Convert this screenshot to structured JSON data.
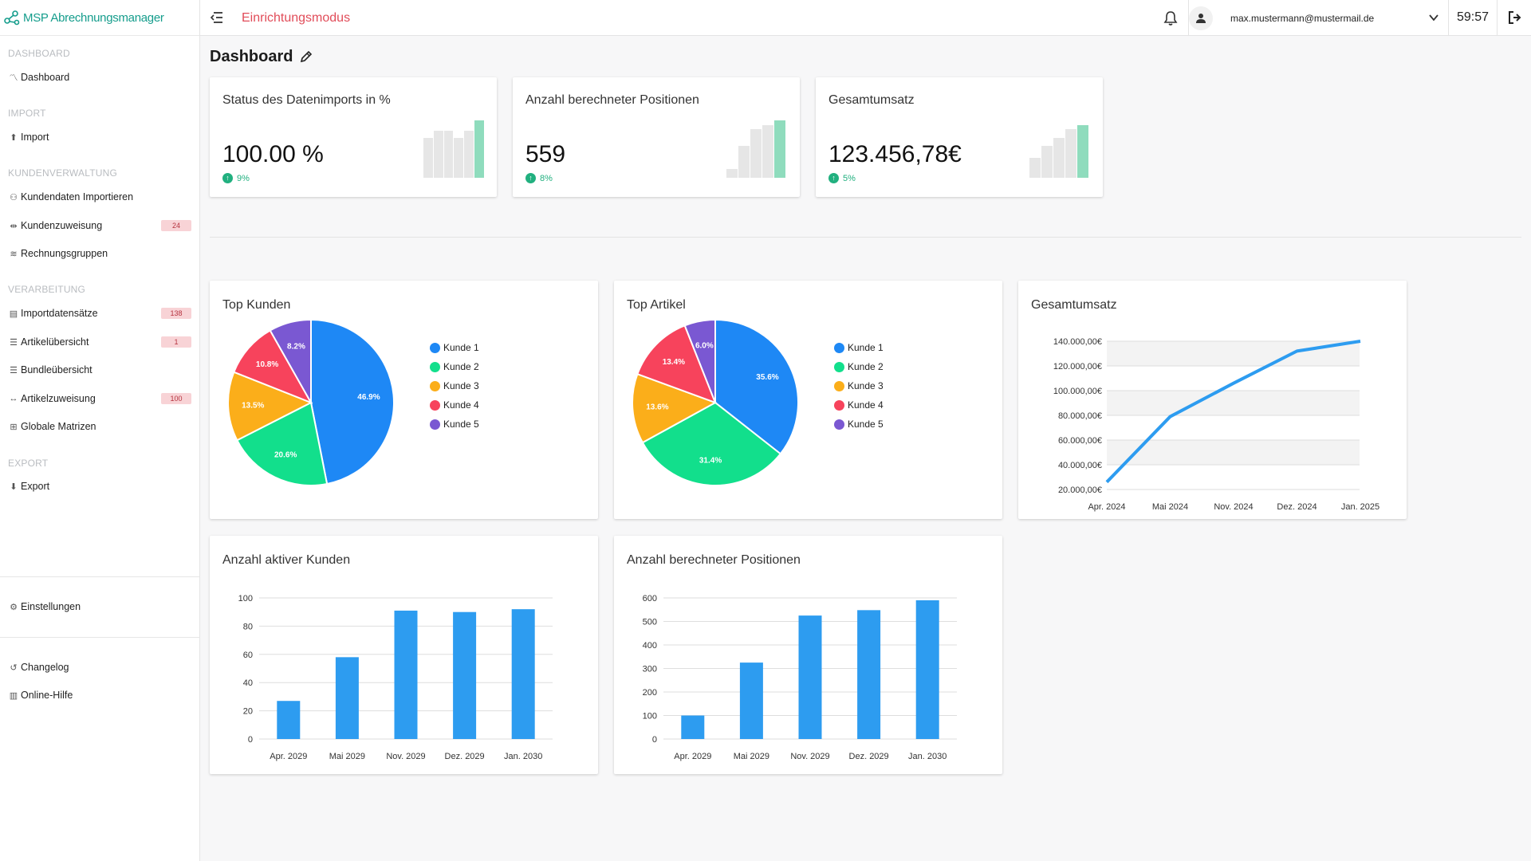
{
  "app": {
    "title": "MSP Abrechnungsmanager",
    "mode": "Einrichtungsmodus"
  },
  "user": {
    "email": "max.mustermann@mustermail.de",
    "timer": "59:57"
  },
  "sidebar": {
    "sections": [
      {
        "title": "DASHBOARD",
        "items": [
          {
            "label": "Dashboard",
            "icon": "dashboard-icon"
          }
        ]
      },
      {
        "title": "IMPORT",
        "items": [
          {
            "label": "Import",
            "icon": "upload-icon"
          }
        ]
      },
      {
        "title": "KUNDENVERWALTUNG",
        "items": [
          {
            "label": "Kundendaten Importieren",
            "icon": "users-icon"
          },
          {
            "label": "Kundenzuweisung",
            "icon": "assign-icon",
            "badge": "24"
          },
          {
            "label": "Rechnungsgruppen",
            "icon": "layers-icon"
          }
        ]
      },
      {
        "title": "VERARBEITUNG",
        "items": [
          {
            "label": "Importdatensätze",
            "icon": "table-icon",
            "badge": "138"
          },
          {
            "label": "Artikelübersicht",
            "icon": "list-icon",
            "badge": "1"
          },
          {
            "label": "Bundleübersicht",
            "icon": "list-icon"
          },
          {
            "label": "Artikelzuweisung",
            "icon": "arrows-icon",
            "badge": "100"
          },
          {
            "label": "Globale Matrizen",
            "icon": "grid-icon"
          }
        ]
      },
      {
        "title": "EXPORT",
        "items": [
          {
            "label": "Export",
            "icon": "download-icon"
          }
        ]
      }
    ],
    "settings": "Einstellungen",
    "changelog": "Changelog",
    "help": "Online-Hilfe"
  },
  "page": {
    "title": "Dashboard"
  },
  "kpis": [
    {
      "label": "Status des Datenimports in %",
      "value": "100.00 %",
      "trend": "9%",
      "spark": [
        0.7,
        0.82,
        0.82,
        0.7,
        0.82,
        1.0
      ]
    },
    {
      "label": "Anzahl berechneter Positionen",
      "value": "559",
      "trend": "8%",
      "spark": [
        0.15,
        0.55,
        0.85,
        0.92,
        1.0
      ]
    },
    {
      "label": "Gesamtumsatz",
      "value": "123.456,78€",
      "trend": "5%",
      "spark": [
        0.35,
        0.55,
        0.7,
        0.85,
        0.92
      ]
    }
  ],
  "colors": {
    "accent": "#159d8c",
    "mode": "#e14c59",
    "bar": "#2d9cf0",
    "line": "#2d9cf0",
    "trend": "#21b07f"
  },
  "chart_data": [
    {
      "type": "pie",
      "title": "Top Kunden",
      "categories": [
        "Kunde 1",
        "Kunde 2",
        "Kunde 3",
        "Kunde 4",
        "Kunde 5"
      ],
      "values": [
        46.9,
        20.6,
        13.5,
        10.8,
        8.2
      ],
      "labels": [
        "46.9%",
        "20.6%",
        "13.5%",
        "10.8%",
        "8.2%"
      ],
      "colors": [
        "#1e88f5",
        "#12df8c",
        "#fbae1a",
        "#f7435c",
        "#7a58d2"
      ],
      "legend": "right"
    },
    {
      "type": "pie",
      "title": "Top Artikel",
      "categories": [
        "Kunde 1",
        "Kunde 2",
        "Kunde 3",
        "Kunde 4",
        "Kunde 5"
      ],
      "values": [
        35.6,
        31.4,
        13.6,
        13.4,
        6.0
      ],
      "labels": [
        "35.6%",
        "31.4%",
        "13.6%",
        "13.4%",
        "6.0%"
      ],
      "colors": [
        "#1e88f5",
        "#12df8c",
        "#fbae1a",
        "#f7435c",
        "#7a58d2"
      ],
      "legend": "right"
    },
    {
      "type": "line",
      "title": "Gesamtumsatz",
      "categories": [
        "Apr. 2024",
        "Mai 2024",
        "Nov. 2024",
        "Dez. 2024",
        "Jan. 2025"
      ],
      "values": [
        26000,
        79000,
        106000,
        132000,
        140000
      ],
      "yticks": [
        20000,
        40000,
        60000,
        80000,
        100000,
        120000,
        140000
      ],
      "ytick_labels": [
        "20.000,00€",
        "40.000,00€",
        "60.000,00€",
        "80.000,00€",
        "100.000,00€",
        "120.000,00€",
        "140.000,00€"
      ],
      "ylim": [
        20000,
        140000
      ],
      "grid": true
    },
    {
      "type": "bar",
      "title": "Anzahl aktiver Kunden",
      "categories": [
        "Apr. 2029",
        "Mai 2029",
        "Nov. 2029",
        "Dez. 2029",
        "Jan. 2030"
      ],
      "values": [
        27,
        58,
        91,
        90,
        92
      ],
      "yticks": [
        0,
        20,
        40,
        60,
        80,
        100
      ],
      "ylim": [
        0,
        100
      ],
      "grid": true
    },
    {
      "type": "bar",
      "title": "Anzahl berechneter Positionen",
      "categories": [
        "Apr. 2029",
        "Mai 2029",
        "Nov. 2029",
        "Dez. 2029",
        "Jan. 2030"
      ],
      "values": [
        100,
        325,
        525,
        548,
        590
      ],
      "yticks": [
        0,
        100,
        200,
        300,
        400,
        500,
        600
      ],
      "ylim": [
        0,
        600
      ],
      "grid": true
    }
  ]
}
